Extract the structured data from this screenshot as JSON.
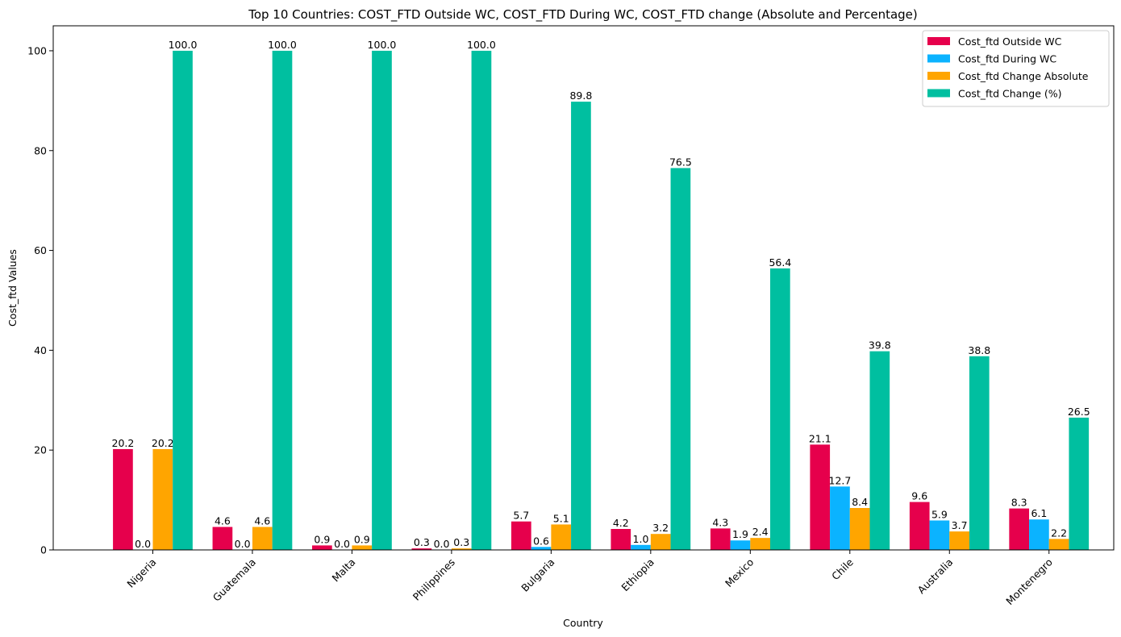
{
  "chart_data": {
    "type": "bar",
    "title": "Top 10 Countries: COST_FTD Outside WC, COST_FTD During WC, COST_FTD change (Absolute and Percentage)",
    "xlabel": "Country",
    "ylabel": "Cost_ftd Values",
    "ylim": [
      0,
      105
    ],
    "yticks": [
      0,
      20,
      40,
      60,
      80,
      100
    ],
    "grid": false,
    "legend_position": "top-right",
    "categories": [
      "Nigeria",
      "Guatemala",
      "Malta",
      "Philippines",
      "Bulgaria",
      "Ethiopia",
      "Mexico",
      "Chile",
      "Australia",
      "Montenegro"
    ],
    "series": [
      {
        "name": "Cost_ftd Outside WC",
        "color": "#e6004c",
        "values": [
          20.2,
          4.6,
          0.9,
          0.3,
          5.7,
          4.2,
          4.3,
          21.1,
          9.6,
          8.3
        ]
      },
      {
        "name": "Cost_ftd During WC",
        "color": "#0bb3ff",
        "values": [
          0.0,
          0.0,
          0.0,
          0.0,
          0.6,
          1.0,
          1.9,
          12.7,
          5.9,
          6.1
        ]
      },
      {
        "name": "Cost_ftd Change Absolute",
        "color": "#ffa500",
        "values": [
          20.2,
          4.6,
          0.9,
          0.3,
          5.1,
          3.2,
          2.4,
          8.4,
          3.7,
          2.2
        ]
      },
      {
        "name": "Cost_ftd Change (%)",
        "color": "#00bfa0",
        "values": [
          100.0,
          100.0,
          100.0,
          100.0,
          89.8,
          76.5,
          56.4,
          39.8,
          38.8,
          26.5
        ]
      }
    ]
  }
}
